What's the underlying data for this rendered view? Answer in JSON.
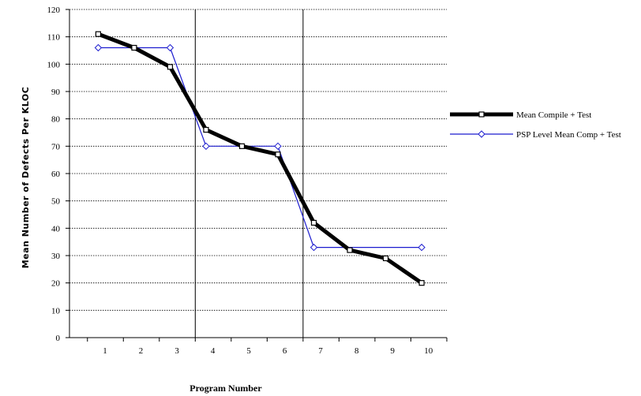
{
  "chart_data": {
    "type": "line",
    "title": "",
    "xlabel": "Program Number",
    "ylabel": "Mean Number of Defects Per KLOC",
    "categories": [
      "1",
      "2",
      "3",
      "4",
      "5",
      "6",
      "7",
      "8",
      "9",
      "10"
    ],
    "x_tick_labels": [
      "1",
      "2",
      "3",
      "4",
      "5",
      "6",
      "7",
      "8",
      "9",
      "10"
    ],
    "xlim": [
      0.5,
      11.0
    ],
    "ylim": [
      0,
      120
    ],
    "y_ticks": [
      0,
      10,
      20,
      30,
      40,
      50,
      60,
      70,
      80,
      90,
      100,
      110,
      120
    ],
    "y_tick_labels": [
      "0",
      "10",
      "20",
      "30",
      "40",
      "50",
      "60",
      "70",
      "80",
      "90",
      "100",
      "110",
      "120"
    ],
    "grid": true,
    "phase_dividers_x": [
      4.0,
      7.0
    ],
    "legend_position": "right",
    "series": [
      {
        "name": "Mean Compile + Test",
        "color": "#000000",
        "marker": "square",
        "x": [
          1.3,
          2.3,
          3.3,
          4.3,
          5.3,
          6.3,
          7.3,
          8.3,
          9.3,
          10.3
        ],
        "values": [
          111,
          106,
          99,
          76,
          70,
          67,
          42,
          32,
          29,
          20
        ]
      },
      {
        "name": "PSP Level Mean Comp + Test",
        "color": "#1c1ccf",
        "marker": "diamond",
        "x": [
          1.3,
          3.3,
          4.3,
          6.3,
          7.3,
          10.3
        ],
        "values": [
          106,
          106,
          70,
          70,
          33,
          33
        ]
      }
    ]
  }
}
